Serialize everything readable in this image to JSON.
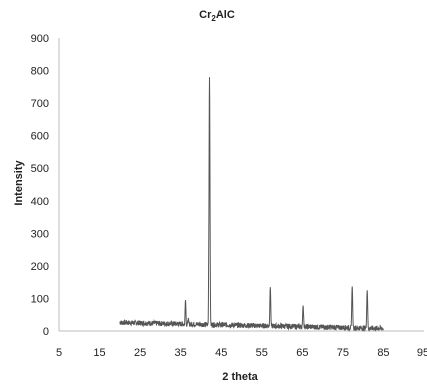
{
  "chart_data": {
    "type": "line",
    "title_main": "Cr",
    "title_sub": "2",
    "title_rest": "AlC",
    "xlabel": "2 theta",
    "ylabel": "Intensity",
    "xlim": [
      5,
      95
    ],
    "ylim": [
      0,
      900
    ],
    "x_ticks": [
      5,
      15,
      25,
      35,
      45,
      55,
      65,
      75,
      85,
      95
    ],
    "y_ticks": [
      0,
      100,
      200,
      300,
      400,
      500,
      600,
      700,
      800,
      900
    ],
    "grid": false,
    "legend": "none",
    "line_color": "#555555",
    "background_range": [
      20,
      85
    ],
    "peaks": [
      {
        "x": 36.2,
        "y": 95
      },
      {
        "x": 36.9,
        "y": 40
      },
      {
        "x": 42.1,
        "y": 780
      },
      {
        "x": 57.1,
        "y": 135
      },
      {
        "x": 65.2,
        "y": 78
      },
      {
        "x": 77.3,
        "y": 137
      },
      {
        "x": 81.0,
        "y": 125
      }
    ]
  }
}
